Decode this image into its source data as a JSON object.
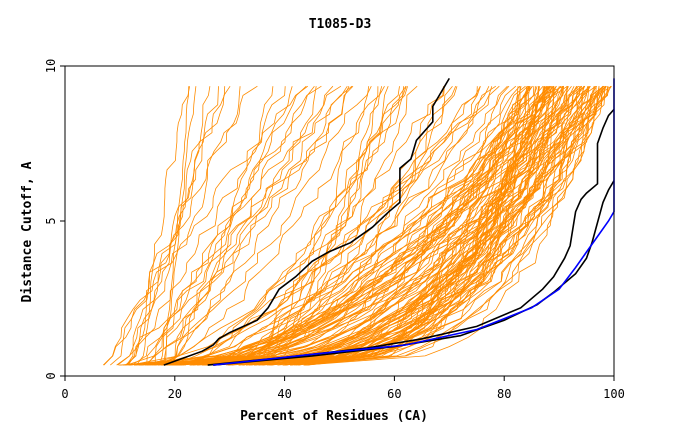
{
  "chart_data": {
    "type": "line",
    "title": "T1085-D3",
    "xlabel": "Percent of Residues (CA)",
    "ylabel": "Distance Cutoff, A",
    "xlim": [
      0,
      100
    ],
    "ylim": [
      0,
      10
    ],
    "x_ticks": [
      "0",
      "20",
      "40",
      "60",
      "80",
      "100"
    ],
    "y_ticks": [
      "0",
      "5",
      "10"
    ],
    "grid": false,
    "legend": "none",
    "colors": {
      "background_models": "#ff8c00",
      "highlight_black": "#000000",
      "highlight_blue": "#0000ff"
    },
    "series": [
      {
        "color": "#000000",
        "x": [
          18,
          25,
          27,
          28,
          30,
          35,
          37,
          39,
          42,
          45,
          48,
          52,
          56,
          59,
          61,
          61,
          63,
          64,
          65,
          66,
          67,
          67,
          68,
          69,
          70
        ],
        "y": [
          0.35,
          0.8,
          1.0,
          1.2,
          1.4,
          1.8,
          2.2,
          2.8,
          3.2,
          3.7,
          4.0,
          4.3,
          4.8,
          5.3,
          5.6,
          6.7,
          7.0,
          7.6,
          7.8,
          8.0,
          8.2,
          8.7,
          9.0,
          9.3,
          9.6
        ]
      },
      {
        "color": "#000000",
        "x": [
          26,
          40,
          55,
          65,
          75,
          83,
          87,
          89,
          91,
          92,
          93,
          94,
          95,
          97,
          97,
          98,
          99,
          100
        ],
        "y": [
          0.35,
          0.6,
          0.9,
          1.2,
          1.6,
          2.2,
          2.8,
          3.2,
          3.8,
          4.2,
          5.3,
          5.7,
          5.9,
          6.2,
          7.5,
          8.0,
          8.4,
          8.6
        ]
      },
      {
        "color": "#000000",
        "x": [
          27,
          45,
          60,
          72,
          80,
          86,
          89,
          91,
          93,
          95,
          96,
          98,
          99,
          100
        ],
        "y": [
          0.35,
          0.65,
          0.95,
          1.3,
          1.8,
          2.3,
          2.7,
          3.0,
          3.3,
          3.8,
          4.3,
          5.6,
          6.0,
          6.3
        ]
      },
      {
        "color": "#0000ff",
        "x": [
          27,
          45,
          62,
          75,
          85,
          90,
          93,
          95,
          97,
          99,
          100,
          100
        ],
        "y": [
          0.35,
          0.7,
          1.0,
          1.5,
          2.2,
          2.8,
          3.5,
          4.0,
          4.5,
          5.0,
          5.3,
          9.6
        ]
      }
    ]
  }
}
